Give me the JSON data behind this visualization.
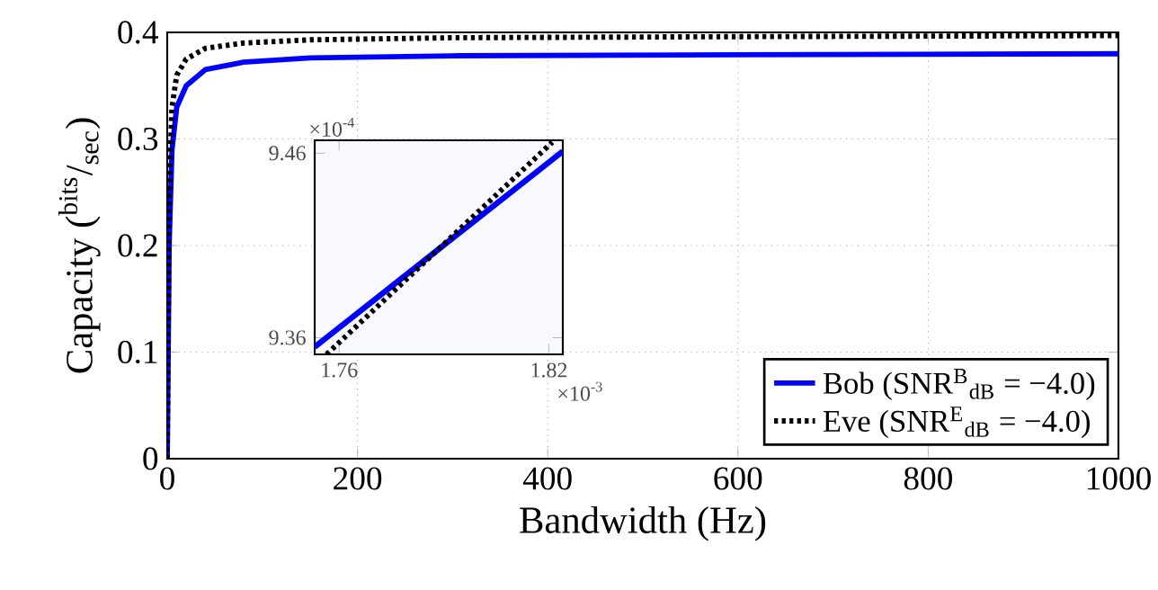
{
  "chart_data": [
    {
      "type": "line",
      "xlabel": "Bandwidth (Hz)",
      "ylabel": "Capacity ($^{bits}$/$_{sec}$)",
      "xlim": [
        0,
        1000
      ],
      "ylim": [
        0,
        0.4
      ],
      "xticks": [
        0,
        200,
        400,
        600,
        800,
        1000
      ],
      "yticks": [
        0,
        0.1,
        0.2,
        0.3,
        0.4
      ],
      "grid": true,
      "legend": "bottom right",
      "marker": "none",
      "series": [
        {
          "name": "Bob (SNR$^{B}$$_{dB}$ = −4.0)",
          "color": "#0000ff",
          "line_style": "solid",
          "x": [
            0,
            2,
            5,
            10,
            20,
            40,
            80,
            150,
            300,
            600,
            1000
          ],
          "values": [
            0,
            0.2,
            0.29,
            0.33,
            0.35,
            0.365,
            0.372,
            0.376,
            0.378,
            0.379,
            0.38
          ]
        },
        {
          "name": "Eve (SNR$^{E}$$_{dB}$ = −4.0)",
          "color": "#000000",
          "line_style": "dotted",
          "x": [
            0,
            2,
            5,
            10,
            20,
            40,
            80,
            150,
            300,
            600,
            1000
          ],
          "values": [
            0,
            0.25,
            0.33,
            0.36,
            0.375,
            0.385,
            0.39,
            0.393,
            0.395,
            0.396,
            0.397
          ]
        }
      ]
    },
    {
      "type": "line",
      "xlim": [
        1.753,
        1.824
      ],
      "ylim": [
        9.351,
        9.467
      ],
      "xticks": [
        1.76,
        1.82
      ],
      "yticks": [
        9.36,
        9.46
      ],
      "annotations": [
        "×10$^{-3}$",
        "×10$^{-4}$"
      ],
      "marker": "none",
      "series": [
        {
          "color": "#0000ff",
          "line_style": "solid",
          "x": [
            1.753,
            1.824
          ],
          "values": [
            9.355,
            9.461
          ]
        },
        {
          "color": "#000000",
          "line_style": "dotted",
          "x": [
            1.7564,
            1.821
          ],
          "values": [
            9.351,
            9.466
          ]
        }
      ]
    }
  ]
}
